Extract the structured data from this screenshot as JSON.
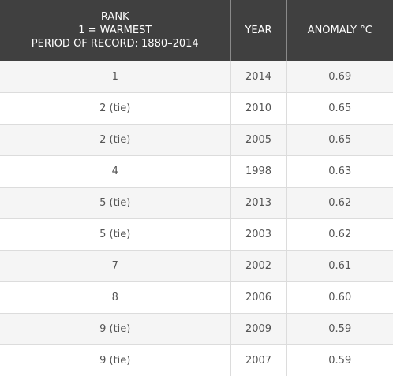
{
  "table": {
    "headers": {
      "rank": [
        "RANK",
        "1 = WARMEST",
        "PERIOD OF RECORD: 1880–2014"
      ],
      "year": "YEAR",
      "anomaly": "ANOMALY °C"
    },
    "rows": [
      {
        "rank": "1",
        "year": "2014",
        "anomaly": "0.69"
      },
      {
        "rank": "2 (tie)",
        "year": "2010",
        "anomaly": "0.65"
      },
      {
        "rank": "2 (tie)",
        "year": "2005",
        "anomaly": "0.65"
      },
      {
        "rank": "4",
        "year": "1998",
        "anomaly": "0.63"
      },
      {
        "rank": "5 (tie)",
        "year": "2013",
        "anomaly": "0.62"
      },
      {
        "rank": "5 (tie)",
        "year": "2003",
        "anomaly": "0.62"
      },
      {
        "rank": "7",
        "year": "2002",
        "anomaly": "0.61"
      },
      {
        "rank": "8",
        "year": "2006",
        "anomaly": "0.60"
      },
      {
        "rank": "9 (tie)",
        "year": "2009",
        "anomaly": "0.59"
      },
      {
        "rank": "9 (tie)",
        "year": "2007",
        "anomaly": "0.59"
      }
    ]
  },
  "colors": {
    "header_bg": "#404040",
    "header_text": "#ffffff",
    "row_alt_bg": "#f5f5f5",
    "cell_text": "#555555"
  }
}
